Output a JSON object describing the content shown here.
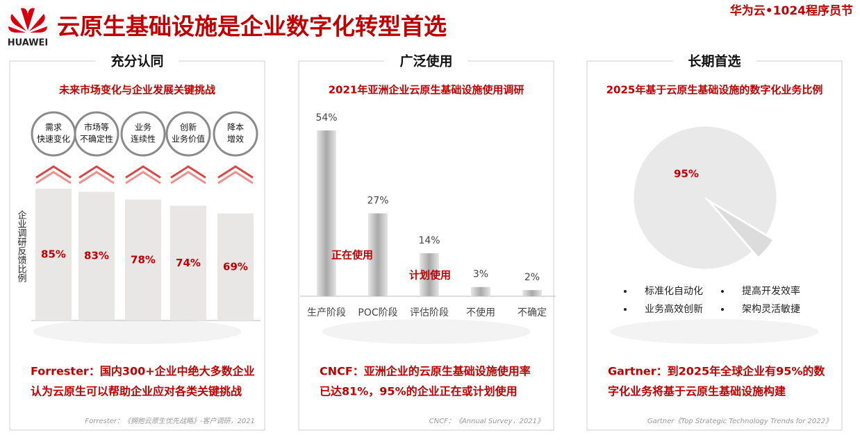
{
  "header": {
    "title": "云原生基础设施是企业数字化转型首选",
    "logo": "HUAWEI",
    "event": "华为云•1024程序员节"
  },
  "panels": [
    {
      "heading": "充分认同",
      "footer": [
        "Forrester：国内300+企业中绝大多数企业",
        "认为云原生可以帮助企业应对各类关键挑战"
      ],
      "source": "Forrester：《拥抱云原生优先战略》-客户调研，2021"
    },
    {
      "heading": "广泛使用",
      "footer": [
        "CNCF：亚洲企业的云原生基础设施使用率",
        "已达81%，95%的企业正在或计划使用"
      ],
      "source": "CNCF：《Annual Survey，2021》"
    },
    {
      "heading": "长期首选",
      "footer": [
        "Gartner：到2025年全球企业有95%的数",
        "字化业务将基于云原生基础设施构建"
      ],
      "source": "Gartner《Top Strategic Technology Trends for 2022》",
      "bullets": [
        "标准化自动化",
        "提高开发效率",
        "业务高效创新",
        "架构灵活敏捷"
      ]
    }
  ],
  "chart_data": [
    {
      "type": "bar",
      "title": "未来市场变化与企业发展关键挑战",
      "y_label": "企业调研反馈比例",
      "categories": [
        [
          "需求",
          "快速变化"
        ],
        [
          "市场等",
          "不确定性"
        ],
        [
          "业务",
          "连续性"
        ],
        [
          "创新",
          "业务价值"
        ],
        [
          "降本",
          "增效"
        ]
      ],
      "values": [
        85,
        83,
        78,
        74,
        69
      ],
      "value_labels": [
        "85%",
        "83%",
        "78%",
        "74%",
        "69%"
      ],
      "color": "#e8e7e6"
    },
    {
      "type": "bar",
      "title": "2021年亚洲企业云原生基础设施使用调研",
      "categories": [
        "生产阶段",
        "POC阶段",
        "评估阶段",
        "不使用",
        "不确定"
      ],
      "values": [
        54,
        27,
        14,
        3,
        2
      ],
      "value_labels": [
        "54%",
        "27%",
        "14%",
        "3%",
        "2%"
      ],
      "color": "#c8c8c8",
      "annotations": [
        "正在使用",
        "计划使用"
      ]
    },
    {
      "type": "pie",
      "title": "2025年基于云原生基础设施的数字化业务比例",
      "values": [
        95,
        5
      ],
      "value_labels": [
        "95%",
        null
      ],
      "colors": [
        "#e9e9e9",
        "#dcdcdc"
      ]
    }
  ]
}
